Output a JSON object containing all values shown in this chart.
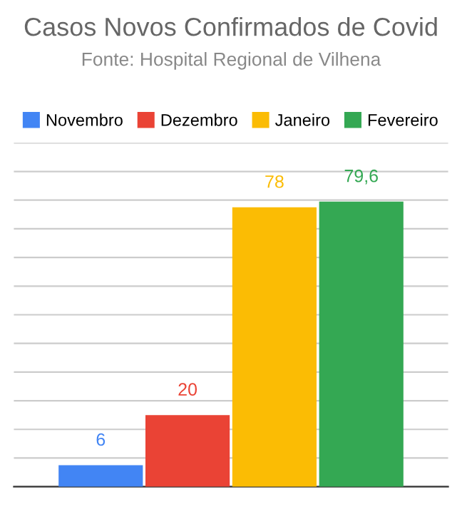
{
  "chart_data": {
    "type": "bar",
    "title": "Casos Novos Confirmados de Covid",
    "subtitle": "Fonte: Hospital Regional de Vilhena",
    "categories": [
      null
    ],
    "series": [
      {
        "name": "Novembro",
        "color": "#4285f4",
        "values": [
          6
        ],
        "value_labels": [
          "6"
        ]
      },
      {
        "name": "Dezembro",
        "color": "#ea4335",
        "values": [
          20
        ],
        "value_labels": [
          "20"
        ]
      },
      {
        "name": "Janeiro",
        "color": "#fbbc04",
        "values": [
          78
        ],
        "value_labels": [
          "78"
        ]
      },
      {
        "name": "Fevereiro",
        "color": "#34a853",
        "values": [
          79.6
        ],
        "value_labels": [
          "79,6"
        ]
      }
    ],
    "ylim": [
      0,
      96
    ],
    "yticks": [
      {
        "value": 0,
        "label": null
      },
      {
        "value": 8,
        "label": null
      },
      {
        "value": 16,
        "label": null
      },
      {
        "value": 24,
        "label": null
      },
      {
        "value": 32,
        "label": null
      },
      {
        "value": 40,
        "label": null
      },
      {
        "value": 48,
        "label": null
      },
      {
        "value": 56,
        "label": null
      },
      {
        "value": 64,
        "label": null
      },
      {
        "value": 72,
        "label": null
      },
      {
        "value": 80,
        "label": null
      },
      {
        "value": 88,
        "label": null
      },
      {
        "value": 96,
        "label": null
      }
    ],
    "grid": "y",
    "legend": "top"
  }
}
